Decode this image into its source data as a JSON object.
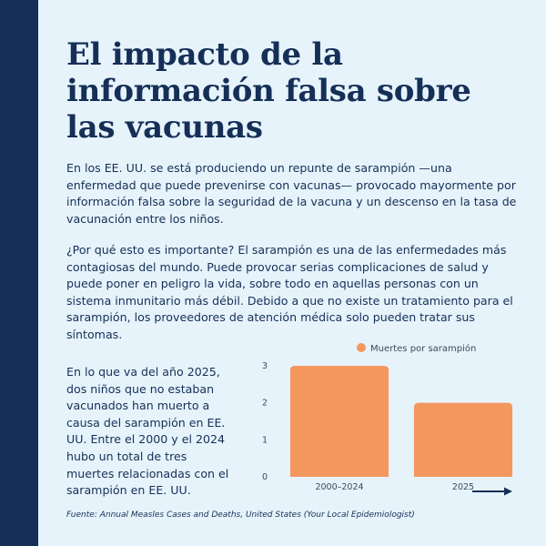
{
  "title": "El impacto de la información falsa sobre las vacunas",
  "paragraphs": {
    "intro": "En los EE. UU. se está produciendo un repunte de sarampión —una enfermedad que puede prevenirse con vacunas— provocado mayormente por información falsa sobre la seguridad de la vacuna y un descenso en la tasa de vacunación entre los niños.",
    "importance": "¿Por qué esto es importante? El sarampión es una de las enfermedades más contagiosas del mundo. Puede provocar serias complicaciones de salud y puede poner en peligro la vida, sobre todo en aquellas personas con un sistema inmunitario más débil. Debido a que no existe un tratamiento para el sarampión, los proveedores de atención médica solo pueden tratar sus síntomas.",
    "deaths": "En lo que va del año 2025, dos niños que no estaban vacunados han muerto a causa del sarampión en EE. UU. Entre el 2000 y el 2024 hubo un total de tres muertes relacionadas con el sarampión en EE. UU."
  },
  "source": "Fuente: Annual Measles Cases and Deaths, United States (Your Local Epidemiologist)",
  "colors": {
    "navy": "#152f57",
    "background": "#e6f3fb",
    "bar": "#f4975f"
  },
  "chart_data": {
    "type": "bar",
    "categories": [
      "2000–2024",
      "2025"
    ],
    "series": [
      {
        "name": "Muertes por sarampión",
        "values": [
          3,
          2
        ]
      }
    ],
    "yticks": [
      "0",
      "1",
      "2",
      "3"
    ],
    "ylim": [
      0,
      3
    ],
    "grid": false,
    "legend_position": "top"
  },
  "icons": {
    "next": "arrow-right-icon"
  }
}
